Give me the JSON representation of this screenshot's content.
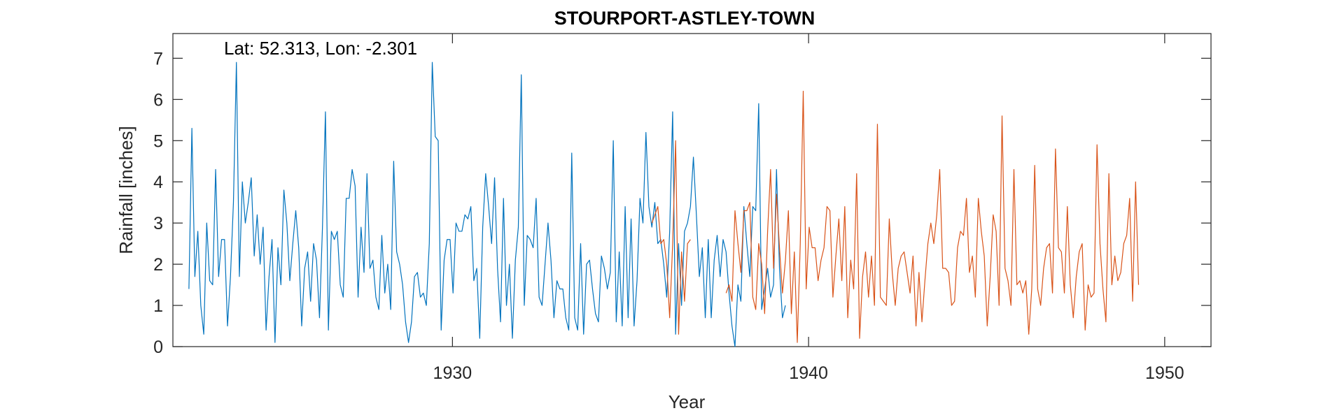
{
  "chart_data": {
    "type": "line",
    "title": "STOURPORT-ASTLEY-TOWN",
    "xlabel": "Year",
    "ylabel": "Rainfall [inches]",
    "annotation": "Lat: 52.313, Lon: -2.301",
    "xlim": [
      1922.15,
      1951.3
    ],
    "ylim": [
      0,
      7.6
    ],
    "xticks": [
      1930,
      1940,
      1950
    ],
    "xtick_labels": [
      "1930",
      "1940",
      "1950"
    ],
    "yticks": [
      0,
      1,
      2,
      3,
      4,
      5,
      6,
      7
    ],
    "ytick_labels": [
      "0",
      "1",
      "2",
      "3",
      "4",
      "5",
      "6",
      "7"
    ],
    "grid": false,
    "series": [
      {
        "color": "#0072BD",
        "start": 1922.6,
        "step": 0.08333,
        "values": [
          1.4,
          5.3,
          1.7,
          2.8,
          1.0,
          0.3,
          3.0,
          1.6,
          1.5,
          4.3,
          1.7,
          2.6,
          2.6,
          0.5,
          1.7,
          3.5,
          6.9,
          1.7,
          4.0,
          3.0,
          3.5,
          4.1,
          2.2,
          3.2,
          2.0,
          2.9,
          0.4,
          1.7,
          2.6,
          0.1,
          2.4,
          1.5,
          3.8,
          3.0,
          1.6,
          2.5,
          3.3,
          2.4,
          0.5,
          1.9,
          2.3,
          1.1,
          2.5,
          2.1,
          0.7,
          2.9,
          5.7,
          0.4,
          2.8,
          2.6,
          2.8,
          1.5,
          1.2,
          3.6,
          3.6,
          4.3,
          3.9,
          1.2,
          2.9,
          1.8,
          4.2,
          1.9,
          2.1,
          1.2,
          0.9,
          2.7,
          1.3,
          2.0,
          0.9,
          4.5,
          2.3,
          2.0,
          1.5,
          0.6,
          0.1,
          0.6,
          1.7,
          1.8,
          1.2,
          1.3,
          1.0,
          2.5,
          6.9,
          5.1,
          5.0,
          0.4,
          2.1,
          2.6,
          2.6,
          1.3,
          3.0,
          2.8,
          2.8,
          3.2,
          3.1,
          3.4,
          1.6,
          1.9,
          0.2,
          2.9,
          4.2,
          3.4,
          2.5,
          4.1,
          1.9,
          0.6,
          3.6,
          1.0,
          2.0,
          0.2,
          2.1,
          2.9,
          6.6,
          1.0,
          2.7,
          2.6,
          2.4,
          3.6,
          1.2,
          1.0,
          2.0,
          3.0,
          2.1,
          0.7,
          1.6,
          1.4,
          1.4,
          0.7,
          0.4,
          4.7,
          0.7,
          0.4,
          2.5,
          0.3,
          2.0,
          2.1,
          1.4,
          0.8,
          0.6,
          2.2,
          1.9,
          1.4,
          1.8,
          5.0,
          0.6,
          2.3,
          0.5,
          3.4,
          0.7,
          3.1,
          0.5,
          1.6,
          3.6,
          3.0,
          5.2,
          3.4,
          2.9,
          3.5,
          2.5,
          2.6,
          2.0,
          1.2,
          2.8,
          5.7,
          0.3,
          2.5,
          1.0,
          2.8,
          3.0,
          3.4,
          4.6,
          3.2,
          1.7,
          2.4,
          0.7,
          2.6,
          0.7,
          2.1,
          2.7,
          1.7,
          2.6,
          2.3,
          1.3,
          0.5,
          0.0,
          1.5,
          1.1,
          3.4,
          2.5,
          1.7,
          3.4,
          3.3,
          5.9,
          0.9,
          1.4,
          1.9,
          1.2,
          1.5,
          4.3,
          1.9,
          0.7,
          1.0
        ]
      },
      {
        "color": "#D95319",
        "start": 1935.6,
        "step": 0.08333,
        "values": [
          3.0,
          3.2,
          3.4,
          2.5,
          2.6,
          2.0,
          0.7,
          2.5,
          5.0,
          0.3,
          2.3,
          1.1,
          2.5,
          2.6,
          null,
          null,
          null,
          null,
          null,
          null,
          null,
          null,
          null,
          null,
          null,
          1.3,
          1.5,
          1.1,
          3.3,
          2.5,
          1.8,
          3.3,
          3.3,
          3.5,
          1.2,
          0.9,
          2.5,
          2.0,
          0.8,
          2.8,
          4.3,
          1.9,
          3.7,
          2.4,
          1.3,
          2.1,
          3.3,
          0.8,
          2.3,
          0.1,
          2.5,
          6.2,
          1.4,
          2.9,
          2.4,
          2.4,
          1.6,
          2.1,
          2.4,
          3.4,
          3.3,
          1.2,
          2.2,
          3.1,
          1.6,
          3.4,
          0.7,
          2.1,
          1.4,
          4.2,
          0.2,
          1.7,
          2.3,
          1.2,
          2.2,
          1.0,
          5.4,
          1.2,
          1.1,
          1.0,
          3.1,
          1.8,
          1.0,
          1.9,
          2.2,
          2.3,
          1.8,
          1.3,
          2.2,
          0.5,
          1.8,
          0.6,
          1.6,
          2.5,
          3.0,
          2.5,
          3.2,
          4.3,
          1.9,
          1.9,
          1.8,
          1.0,
          1.1,
          2.4,
          2.8,
          2.7,
          3.6,
          1.8,
          2.2,
          1.2,
          3.6,
          2.8,
          2.2,
          0.5,
          1.7,
          3.2,
          2.8,
          1.0,
          5.6,
          1.9,
          1.6,
          1.0,
          4.3,
          1.5,
          1.6,
          1.3,
          1.6,
          0.3,
          1.4,
          4.4,
          1.4,
          1.0,
          1.9,
          2.4,
          2.5,
          1.3,
          4.8,
          2.4,
          2.3,
          1.3,
          3.4,
          1.5,
          0.7,
          1.7,
          2.3,
          2.5,
          0.4,
          1.5,
          1.2,
          1.3,
          4.9,
          2.5,
          1.4,
          0.6,
          4.2,
          1.5,
          2.2,
          1.6,
          1.8,
          2.5,
          2.7,
          3.6,
          1.1,
          4.0,
          1.5
        ]
      }
    ]
  }
}
